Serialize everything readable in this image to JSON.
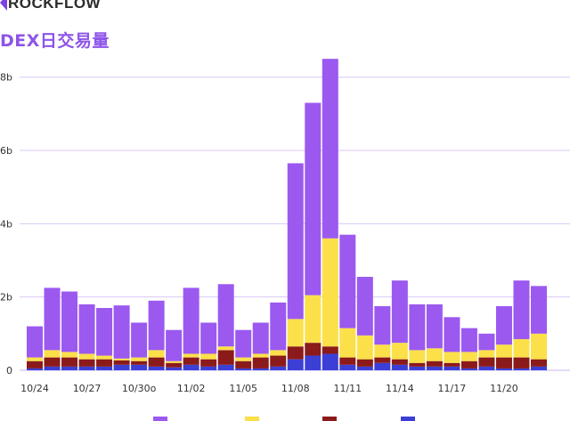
{
  "brand": {
    "logo_text": "ROCKFLOW"
  },
  "title": "DEX日交易量",
  "colors": {
    "purple": "#9b59f0",
    "yellow": "#fbe04a",
    "darkred": "#8b1a1a",
    "blue": "#3b3fd6",
    "grid": "#d9c8f5",
    "axis_text": "#333333",
    "title": "#8e54e9"
  },
  "chart_data": {
    "type": "bar",
    "stacked": true,
    "ylim": [
      0,
      8.6
    ],
    "y_ticks": [
      "0",
      "2b",
      "4b",
      "6b",
      "8b"
    ],
    "y_tick_values": [
      0,
      2,
      4,
      6,
      8
    ],
    "x_tick_labels": [
      "10/24",
      "10/27",
      "10/30o",
      "11/02",
      "11/05",
      "11/08",
      "11/11",
      "11/14",
      "11/17",
      "11/20"
    ],
    "x_tick_indices": [
      0,
      3,
      6,
      9,
      12,
      15,
      18,
      21,
      24,
      27
    ],
    "grid": true,
    "legend_position": "bottom",
    "categories": [
      "10/24",
      "10/25",
      "10/26",
      "10/27",
      "10/28",
      "10/29",
      "10/30",
      "10/31",
      "11/01",
      "11/02",
      "11/03",
      "11/04",
      "11/05",
      "11/06",
      "11/07",
      "11/08",
      "11/09",
      "11/10",
      "11/11",
      "11/12",
      "11/13",
      "11/14",
      "11/15",
      "11/16",
      "11/17",
      "11/18",
      "11/19",
      "11/20",
      "11/21",
      "11/22"
    ],
    "series": [
      {
        "color": "purple",
        "values": [
          0.85,
          1.7,
          1.65,
          1.35,
          1.3,
          1.45,
          0.95,
          1.35,
          0.85,
          1.8,
          0.85,
          1.7,
          0.75,
          0.85,
          1.3,
          4.25,
          5.25,
          4.9,
          2.55,
          1.6,
          1.05,
          1.7,
          1.25,
          1.2,
          0.95,
          0.65,
          0.45,
          1.05,
          1.6,
          1.3
        ]
      },
      {
        "color": "yellow",
        "values": [
          0.1,
          0.2,
          0.15,
          0.15,
          0.1,
          0.05,
          0.1,
          0.2,
          0.05,
          0.1,
          0.15,
          0.1,
          0.1,
          0.1,
          0.15,
          0.75,
          1.3,
          2.95,
          0.8,
          0.65,
          0.35,
          0.45,
          0.35,
          0.35,
          0.3,
          0.25,
          0.2,
          0.35,
          0.5,
          0.7
        ]
      },
      {
        "color": "darkred",
        "values": [
          0.2,
          0.25,
          0.25,
          0.2,
          0.2,
          0.12,
          0.1,
          0.25,
          0.12,
          0.2,
          0.2,
          0.4,
          0.2,
          0.3,
          0.3,
          0.35,
          0.35,
          0.2,
          0.2,
          0.2,
          0.15,
          0.15,
          0.1,
          0.15,
          0.1,
          0.2,
          0.25,
          0.3,
          0.3,
          0.2
        ]
      },
      {
        "color": "blue",
        "values": [
          0.05,
          0.1,
          0.1,
          0.1,
          0.1,
          0.15,
          0.15,
          0.1,
          0.08,
          0.15,
          0.1,
          0.15,
          0.05,
          0.05,
          0.1,
          0.3,
          0.4,
          0.45,
          0.15,
          0.1,
          0.2,
          0.15,
          0.1,
          0.1,
          0.1,
          0.05,
          0.1,
          0.05,
          0.05,
          0.1
        ]
      }
    ]
  }
}
